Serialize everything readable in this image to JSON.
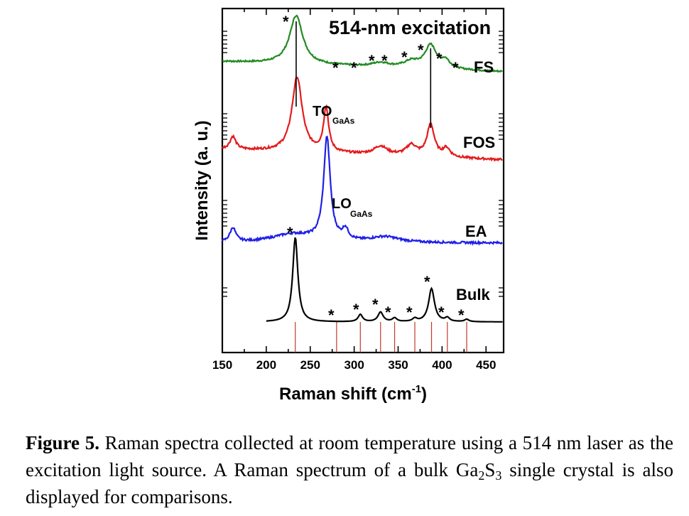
{
  "chart_data": {
    "type": "line",
    "title": "514-nm excitation",
    "xlabel_main": "Raman shift (cm",
    "xlabel_sup": "-1",
    "xlabel_end": ")",
    "ylabel": "Intensity (a. u.)",
    "xlim": [
      150,
      470
    ],
    "x_ticks": [
      150,
      200,
      250,
      300,
      350,
      400,
      450
    ],
    "series": [
      {
        "name": "FS",
        "color": "#228b22",
        "offset": 3.0,
        "baseline_end": 0.2,
        "peaks": [
          [
            234,
            0.95,
            9
          ],
          [
            387,
            0.45,
            8
          ],
          [
            404,
            0.15,
            6
          ],
          [
            365,
            0.12,
            10
          ],
          [
            330,
            0.08,
            12
          ]
        ]
      },
      {
        "name": "FOS",
        "color": "#e41a1c",
        "offset": 2.0,
        "baseline_end": 0.15,
        "peaks": [
          [
            235,
            1.05,
            7
          ],
          [
            268,
            0.62,
            3.5
          ],
          [
            387,
            0.45,
            5
          ],
          [
            365,
            0.15,
            7
          ],
          [
            330,
            0.12,
            9
          ],
          [
            405,
            0.12,
            5
          ],
          [
            162,
            0.18,
            4
          ]
        ]
      },
      {
        "name": "EA",
        "color": "#1f1fe8",
        "offset": 1.0,
        "baseline_end": 0.0,
        "peaks": [
          [
            269,
            1.45,
            4.5
          ],
          [
            290,
            0.15,
            4
          ],
          [
            162,
            0.2,
            4
          ],
          [
            230,
            0.12,
            30
          ],
          [
            335,
            0.08,
            20
          ]
        ]
      },
      {
        "name": "Bulk",
        "color": "#000000",
        "offset": 0.0,
        "baseline_end": 0.0,
        "peaks": [
          [
            233,
            1.4,
            3.5
          ],
          [
            388,
            0.55,
            4
          ],
          [
            307,
            0.12,
            3
          ],
          [
            330,
            0.16,
            3.5
          ],
          [
            346,
            0.06,
            3
          ],
          [
            369,
            0.05,
            3
          ],
          [
            406,
            0.06,
            3
          ],
          [
            428,
            0.04,
            3
          ]
        ]
      }
    ],
    "labels": {
      "fs": "FS",
      "fos": "FOS",
      "ea": "EA",
      "bulk": "Bulk"
    },
    "annotations": {
      "to": "TO",
      "lo": "LO",
      "sub": "GaAs",
      "star": "*"
    },
    "vertical_lines": [
      234,
      387
    ],
    "bulk_markers": [
      233,
      280,
      307,
      330,
      346,
      369,
      388,
      406,
      428
    ]
  },
  "caption": {
    "label": "Figure 5.",
    "text1": " Raman spectra collected at room temperature using a 514 nm laser as the excitation light source. A Raman spectrum of a bulk Ga",
    "sub1": "2",
    "text2": "S",
    "sub2": "3",
    "text3": " single crystal is also displayed for comparisons."
  }
}
